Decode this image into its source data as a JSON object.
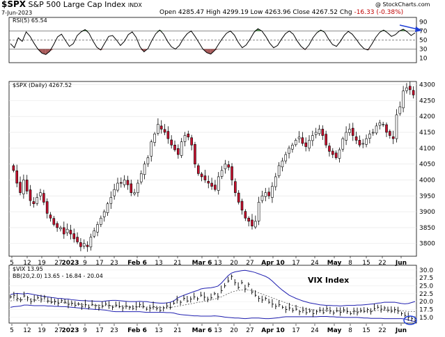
{
  "header": {
    "symbol": "$SPX",
    "name": "S&P 500 Large Cap Index",
    "exchange": "INDX",
    "date": "7-Jun-2023",
    "watermark": "@ StockCharts.com",
    "quote": {
      "open_label": "Open",
      "open": "4285.47",
      "high_label": "High",
      "high": "4299.19",
      "low_label": "Low",
      "low": "4263.96",
      "close_label": "Close",
      "close": "4267.52",
      "chg_label": "Chg",
      "chg": "-16.33 (-0.38%)"
    }
  },
  "annotations": {
    "vix_label": "VIX Index",
    "arrow_color": "#1f3fd6"
  },
  "chart_data": [
    {
      "type": "line",
      "name": "RSI",
      "legend": "RSI(5) 65.54",
      "ylim": [
        0,
        100
      ],
      "yticks": [
        "90",
        "70",
        "50",
        "30",
        "10"
      ],
      "levels": [
        70,
        50,
        30
      ],
      "colors": {
        "line": "#000000",
        "overbought_fill": "#4c8a4c",
        "oversold_fill": "#a85a5a"
      },
      "values": [
        42,
        33,
        55,
        47,
        68,
        58,
        43,
        30,
        21,
        18,
        25,
        40,
        57,
        63,
        49,
        36,
        42,
        60,
        68,
        73,
        65,
        48,
        34,
        28,
        43,
        58,
        60,
        50,
        38,
        47,
        62,
        68,
        56,
        35,
        24,
        31,
        49,
        64,
        72,
        63,
        47,
        35,
        30,
        38,
        53,
        64,
        70,
        58,
        44,
        30,
        22,
        19,
        27,
        41,
        54,
        65,
        70,
        61,
        45,
        33,
        39,
        52,
        67,
        75,
        70,
        58,
        43,
        33,
        38,
        52,
        64,
        70,
        63,
        48,
        36,
        29,
        39,
        55,
        66,
        72,
        67,
        52,
        40,
        36,
        47,
        61,
        69,
        63,
        52,
        40,
        31,
        28,
        41,
        56,
        67,
        72,
        66,
        58,
        62,
        70,
        74,
        68,
        60,
        66
      ]
    },
    {
      "type": "candlestick",
      "name": "SPX",
      "legend": "$SPX (Daily) 4267.52",
      "ylim": [
        3760,
        4310
      ],
      "yticks": [
        4300,
        4250,
        4200,
        4150,
        4100,
        4050,
        4000,
        3950,
        3900,
        3850,
        3800
      ],
      "x": [
        "5",
        "12",
        "19",
        "27",
        "2023",
        "9",
        "17",
        "23",
        "Feb 6",
        "13",
        "21",
        "Mar 6",
        "13",
        "20",
        "27",
        "Apr 10",
        "17",
        "24",
        "May",
        "8",
        "15",
        "22",
        "Jun"
      ],
      "colors": {
        "up": "#ffffff",
        "down": "#c8102e",
        "wick": "#000000"
      },
      "closes": [
        4030,
        3990,
        3960,
        4000,
        3965,
        3935,
        3925,
        3945,
        3960,
        3930,
        3895,
        3880,
        3860,
        3850,
        3850,
        3830,
        3845,
        3830,
        3815,
        3805,
        3790,
        3800,
        3790,
        3820,
        3840,
        3860,
        3880,
        3900,
        3925,
        3945,
        3970,
        3990,
        3990,
        4000,
        3985,
        3960,
        3960,
        3990,
        4020,
        4050,
        4070,
        4120,
        4145,
        4175,
        4160,
        4150,
        4130,
        4110,
        4095,
        4080,
        4120,
        4140,
        4135,
        4110,
        4050,
        4020,
        4010,
        4000,
        3990,
        3980,
        3970,
        4010,
        4030,
        4050,
        4040,
        4000,
        3960,
        3930,
        3905,
        3880,
        3870,
        3855,
        3870,
        3930,
        3950,
        3960,
        3950,
        3980,
        4010,
        4045,
        4060,
        4080,
        4100,
        4110,
        4125,
        4135,
        4115,
        4105,
        4125,
        4140,
        4150,
        4160,
        4140,
        4110,
        4090,
        4080,
        4070,
        4095,
        4130,
        4150,
        4160,
        4140,
        4125,
        4110,
        4115,
        4130,
        4145,
        4150,
        4170,
        4180,
        4175,
        4150,
        4140,
        4130,
        4205,
        4230,
        4280,
        4290,
        4284,
        4267.52
      ]
    },
    {
      "type": "line",
      "name": "VIX",
      "legend": "$VIX 13.95",
      "band_legend": "BB(20,2.0) 13.65 - 16.84 - 20.04",
      "ylim": [
        13.2,
        31.5
      ],
      "yticks": [
        "30.0",
        "27.5",
        "25.0",
        "22.5",
        "20.0",
        "17.5",
        "15.0"
      ],
      "colors": {
        "vix": "#000000",
        "band": "#1f1fb0",
        "mid": "#555555"
      },
      "values": [
        21.5,
        22.0,
        21.0,
        20.5,
        21.8,
        21.2,
        20.0,
        20.5,
        21.2,
        20.8,
        21.5,
        20.2,
        19.8,
        20.1,
        19.5,
        20.3,
        19.8,
        19.0,
        19.5,
        18.8,
        19.2,
        18.5,
        19.0,
        18.2,
        19.1,
        18.7,
        18.0,
        18.5,
        19.2,
        18.8,
        18.2,
        18.9,
        18.4,
        18.0,
        18.6,
        18.1,
        17.8,
        18.3,
        19.0,
        18.5,
        17.6,
        17.9,
        18.4,
        17.8,
        17.2,
        18.0,
        18.6,
        18.2,
        19.5,
        20.5,
        19.8,
        21.0,
        20.2,
        20.8,
        21.5,
        20.9,
        22.0,
        21.4,
        20.7,
        21.2,
        22.5,
        21.6,
        23.5,
        25.0,
        26.5,
        28.0,
        26.0,
        24.5,
        26.0,
        24.0,
        25.5,
        23.0,
        22.0,
        21.0,
        20.5,
        21.0,
        19.8,
        19.2,
        18.5,
        19.0,
        18.2,
        17.5,
        18.0,
        17.2,
        17.6,
        16.8,
        17.3,
        16.5,
        17.0,
        16.2,
        16.8,
        17.2,
        16.5,
        17.8,
        17.0,
        16.4,
        17.1,
        16.6,
        17.4,
        16.8,
        16.2,
        17.0,
        16.5,
        17.2,
        16.9,
        17.5,
        16.8,
        17.8,
        18.2,
        17.6,
        18.0,
        17.3,
        16.9,
        17.5,
        17.0,
        16.2,
        15.6,
        15.0,
        14.6,
        13.95
      ],
      "upper": [
        22.2,
        22.5,
        22.6,
        22.5,
        22.4,
        22.6,
        22.4,
        22.2,
        22.0,
        21.8,
        21.6,
        21.5,
        21.3,
        21.2,
        21.0,
        21.0,
        20.8,
        20.8,
        20.6,
        20.5,
        20.4,
        20.3,
        20.3,
        20.2,
        20.2,
        20.1,
        20.1,
        20.0,
        20.2,
        20.3,
        20.4,
        20.4,
        20.3,
        20.2,
        20.1,
        20.0,
        20.0,
        20.0,
        20.1,
        20.0,
        20.0,
        19.8,
        19.7,
        19.6,
        19.5,
        19.5,
        19.6,
        19.8,
        20.2,
        21.0,
        21.6,
        22.0,
        22.4,
        22.8,
        23.2,
        23.5,
        24.0,
        24.2,
        24.3,
        24.4,
        24.6,
        24.9,
        25.8,
        27.0,
        28.2,
        29.0,
        29.4,
        29.6,
        29.8,
        29.9,
        29.7,
        29.5,
        29.2,
        28.8,
        28.4,
        28.0,
        27.4,
        26.5,
        25.5,
        24.5,
        23.6,
        22.8,
        22.0,
        21.5,
        21.0,
        20.6,
        20.2,
        19.9,
        19.6,
        19.4,
        19.2,
        19.0,
        18.9,
        18.8,
        18.8,
        18.7,
        18.7,
        18.6,
        18.7,
        18.8,
        18.8,
        18.8,
        18.9,
        18.9,
        19.0,
        19.1,
        19.2,
        19.3,
        19.5,
        19.6,
        19.8,
        19.8,
        19.8,
        19.8,
        19.6,
        19.4,
        19.3,
        19.4,
        19.7,
        20.04
      ],
      "mid": [
        20.2,
        20.5,
        20.6,
        20.6,
        20.7,
        20.7,
        20.6,
        20.5,
        20.4,
        20.3,
        20.2,
        20.1,
        20.0,
        19.9,
        19.8,
        19.7,
        19.6,
        19.5,
        19.4,
        19.3,
        19.2,
        19.1,
        19.0,
        18.9,
        18.9,
        18.8,
        18.8,
        18.7,
        18.7,
        18.7,
        18.6,
        18.6,
        18.6,
        18.5,
        18.5,
        18.4,
        18.4,
        18.4,
        18.4,
        18.3,
        18.3,
        18.2,
        18.2,
        18.1,
        18.1,
        18.1,
        18.1,
        18.2,
        18.3,
        18.5,
        18.7,
        18.9,
        19.1,
        19.3,
        19.5,
        19.7,
        19.9,
        20.1,
        20.3,
        20.5,
        20.8,
        21.1,
        21.5,
        22.0,
        22.5,
        23.0,
        23.3,
        23.5,
        23.7,
        23.8,
        23.7,
        23.5,
        23.2,
        22.8,
        22.4,
        22.0,
        21.6,
        21.2,
        20.8,
        20.4,
        20.0,
        19.6,
        19.2,
        18.8,
        18.5,
        18.2,
        17.9,
        17.7,
        17.5,
        17.4,
        17.3,
        17.3,
        17.2,
        17.2,
        17.1,
        17.1,
        17.1,
        17.0,
        17.0,
        17.0,
        16.9,
        16.9,
        16.9,
        16.9,
        17.0,
        17.0,
        17.0,
        17.1,
        17.2,
        17.2,
        17.3,
        17.3,
        17.3,
        17.3,
        17.2,
        17.1,
        17.0,
        16.9,
        16.9,
        16.84
      ],
      "lower": [
        18.2,
        18.4,
        18.5,
        18.6,
        18.9,
        18.9,
        18.8,
        18.7,
        18.7,
        18.7,
        18.7,
        18.6,
        18.6,
        18.5,
        18.5,
        18.4,
        18.4,
        18.3,
        18.2,
        18.1,
        18.0,
        17.9,
        17.8,
        17.7,
        17.6,
        17.5,
        17.5,
        17.4,
        17.3,
        17.1,
        16.9,
        16.8,
        16.8,
        16.8,
        16.8,
        16.8,
        16.8,
        16.8,
        16.8,
        16.7,
        16.6,
        16.6,
        16.6,
        16.6,
        16.6,
        16.6,
        16.5,
        16.5,
        16.4,
        16.1,
        15.9,
        15.8,
        15.7,
        15.6,
        15.5,
        15.5,
        15.4,
        15.4,
        15.4,
        15.4,
        15.5,
        15.4,
        15.3,
        15.1,
        15.0,
        14.9,
        14.8,
        14.8,
        14.7,
        14.6,
        14.7,
        14.8,
        14.8,
        14.8,
        14.7,
        14.6,
        14.6,
        14.7,
        14.8,
        14.9,
        15.1,
        15.2,
        15.2,
        15.2,
        15.2,
        15.2,
        15.2,
        15.2,
        15.2,
        15.2,
        15.2,
        15.3,
        15.3,
        15.3,
        15.2,
        15.2,
        15.1,
        15.1,
        15.0,
        15.0,
        15.0,
        15.0,
        15.0,
        14.9,
        14.8,
        14.8,
        14.7,
        14.7,
        14.7,
        14.7,
        14.6,
        14.6,
        14.6,
        14.6,
        14.6,
        14.6,
        14.5,
        14.2,
        13.9,
        13.65
      ]
    }
  ]
}
